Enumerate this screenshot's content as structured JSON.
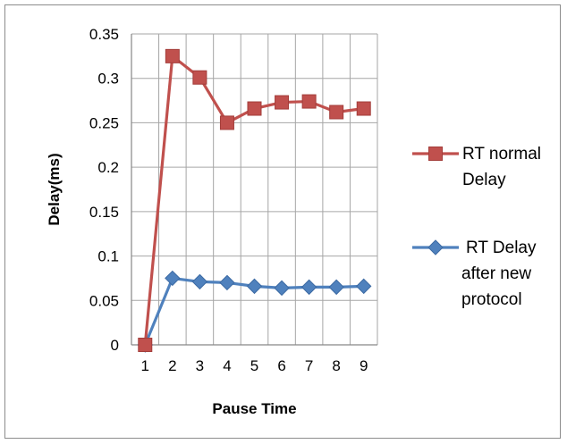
{
  "chart_data": {
    "type": "line",
    "xlabel": "Pause Time",
    "ylabel": "Delay(ms)",
    "x": [
      1,
      2,
      3,
      4,
      5,
      6,
      7,
      8,
      9
    ],
    "xlim": [
      0.5,
      9.5
    ],
    "ylim": [
      0,
      0.35
    ],
    "yticks": [
      "0",
      "0.05",
      "0.1",
      "0.15",
      "0.2",
      "0.25",
      "0.3",
      "0.35"
    ],
    "grid": true,
    "legend_position": "right",
    "series": [
      {
        "name_lines": [
          "RT normal",
          "Delay"
        ],
        "color": "#c0504d",
        "marker": "square",
        "values": [
          0,
          0.325,
          0.301,
          0.25,
          0.266,
          0.273,
          0.274,
          0.262,
          0.266
        ]
      },
      {
        "name_lines": [
          "RT Delay",
          "after new",
          "protocol"
        ],
        "color": "#4f81bd",
        "marker": "diamond",
        "values": [
          0,
          0.075,
          0.071,
          0.07,
          0.066,
          0.064,
          0.065,
          0.065,
          0.066
        ]
      }
    ]
  }
}
